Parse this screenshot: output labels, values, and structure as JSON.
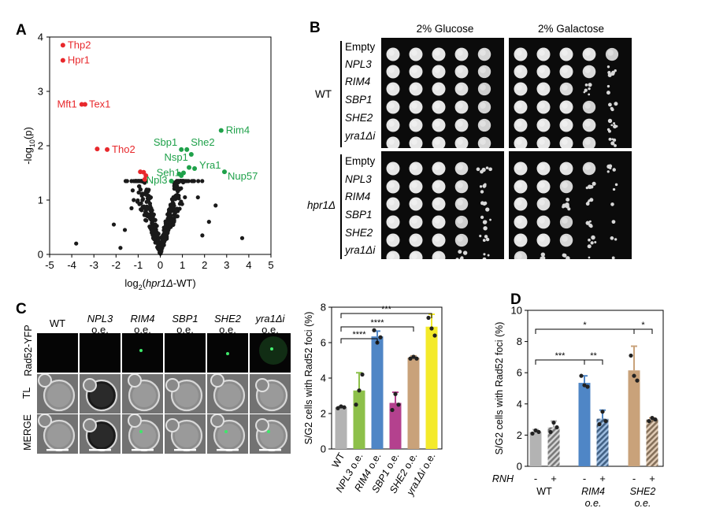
{
  "panels": {
    "a": "A",
    "b": "B",
    "c": "C",
    "d": "D"
  },
  "chart_data": [
    {
      "type": "scatter",
      "xlabel": "log2(hpr1Δ-WT)",
      "ylabel": "-log10(p)",
      "xlim": [
        -5,
        5
      ],
      "ylim": [
        0,
        4
      ],
      "xticks": [
        "-5",
        "-4",
        "-3",
        "-2",
        "-1",
        "0",
        "1",
        "2",
        "3",
        "4",
        "5"
      ],
      "yticks": [
        "0",
        "1",
        "2",
        "3",
        "4"
      ],
      "colors": {
        "down": "#e8282c",
        "up": "#1fa14a",
        "other": "#1a1a1a"
      },
      "labeled_points": [
        {
          "label": "Thp2",
          "x": -4.4,
          "y": 3.85,
          "group": "down"
        },
        {
          "label": "Hpr1",
          "x": -4.4,
          "y": 3.57,
          "group": "down"
        },
        {
          "label": "Mft1",
          "x": -3.55,
          "y": 2.76,
          "group": "down"
        },
        {
          "label": "Tex1",
          "x": -3.4,
          "y": 2.76,
          "group": "down"
        },
        {
          "label": "Tho2",
          "x": -2.4,
          "y": 1.93,
          "group": "down"
        },
        {
          "label": "",
          "x": -2.85,
          "y": 1.94,
          "group": "down"
        },
        {
          "label": "",
          "x": -0.9,
          "y": 1.52,
          "group": "down"
        },
        {
          "label": "",
          "x": -0.75,
          "y": 1.51,
          "group": "down"
        },
        {
          "label": "",
          "x": -0.65,
          "y": 1.45,
          "group": "down"
        },
        {
          "label": "",
          "x": -0.7,
          "y": 1.38,
          "group": "down"
        },
        {
          "label": "Rim4",
          "x": 2.75,
          "y": 2.28,
          "group": "up"
        },
        {
          "label": "Sbp1",
          "x": 0.95,
          "y": 1.93,
          "group": "up"
        },
        {
          "label": "She2",
          "x": 1.2,
          "y": 1.93,
          "group": "up"
        },
        {
          "label": "Nsp1",
          "x": 1.4,
          "y": 1.84,
          "group": "up"
        },
        {
          "label": "Yra1",
          "x": 1.55,
          "y": 1.58,
          "group": "up"
        },
        {
          "label": "Seh1",
          "x": 1.05,
          "y": 1.5,
          "group": "up"
        },
        {
          "label": "Npl3",
          "x": 0.5,
          "y": 1.35,
          "group": "up"
        },
        {
          "label": "Nup57",
          "x": 2.9,
          "y": 1.52,
          "group": "up"
        },
        {
          "label": "",
          "x": 1.3,
          "y": 1.6,
          "group": "up"
        },
        {
          "label": "",
          "x": 0.85,
          "y": 1.48,
          "group": "up"
        },
        {
          "label": "",
          "x": 0.95,
          "y": 1.45,
          "group": "up"
        }
      ]
    },
    {
      "type": "bar",
      "ylabel": "S/G2 cells with Rad52 foci (%)",
      "ylim": [
        0,
        8
      ],
      "yticks": [
        "0",
        "2",
        "4",
        "6",
        "8"
      ],
      "categories": [
        "WT",
        "NPL3 o.e.",
        "RIM4 o.e.",
        "SBP1 o.e.",
        "SHE2 o.e.",
        "yra1Δi o.e."
      ],
      "values": [
        2.35,
        3.3,
        6.35,
        2.6,
        5.15,
        6.9
      ],
      "errors": [
        0.05,
        1.0,
        0.3,
        0.6,
        0.1,
        0.7
      ],
      "colors": [
        "#b3b3b3",
        "#8dc04a",
        "#4f86c6",
        "#b4418e",
        "#c9a27a",
        "#f4ea2a"
      ],
      "replicates": [
        [
          2.3,
          2.4,
          2.35
        ],
        [
          2.5,
          3.3,
          4.2
        ],
        [
          6.7,
          6.0,
          6.3
        ],
        [
          2.2,
          3.1,
          2.5
        ],
        [
          5.1,
          5.2,
          5.1
        ],
        [
          7.4,
          6.8,
          6.4
        ]
      ],
      "significance": [
        "****",
        "****",
        "***"
      ]
    },
    {
      "type": "bar",
      "ylabel": "S/G2 cells with Rad52 foci (%)",
      "ylim": [
        0,
        10
      ],
      "yticks": [
        "0",
        "2",
        "4",
        "6",
        "8",
        "10"
      ],
      "categories": [
        "WT",
        "WT",
        "RIM4 o.e.",
        "RIM4 o.e.",
        "SHE2 o.e.",
        "SHE2 o.e."
      ],
      "rnh": [
        "-",
        "+",
        "-",
        "+",
        "-",
        "+"
      ],
      "rnh_label": "RNH",
      "group_labels": [
        "WT",
        "RIM4",
        "SHE2"
      ],
      "group_sublabels": [
        "",
        "o.e.",
        "o.e."
      ],
      "values": [
        2.2,
        2.5,
        5.35,
        3.05,
        6.15,
        3.0
      ],
      "errors": [
        0.15,
        0.4,
        0.45,
        0.55,
        1.55,
        0.1
      ],
      "colors": [
        "#b3b3b3",
        "#b3b3b3",
        "#4f86c6",
        "#4f86c6",
        "#c9a27a",
        "#c9a27a"
      ],
      "hatched": [
        false,
        true,
        false,
        true,
        false,
        true
      ],
      "replicates": [
        [
          2.1,
          2.3,
          2.2
        ],
        [
          2.2,
          2.8,
          2.5
        ],
        [
          5.8,
          5.2,
          5.1
        ],
        [
          2.7,
          3.5,
          2.9
        ],
        [
          7.1,
          5.8,
          5.5
        ],
        [
          2.9,
          3.1,
          3.0
        ]
      ],
      "significance": [
        "*",
        "***",
        "**",
        "*"
      ]
    }
  ],
  "spot_assay": {
    "media": [
      "2% Glucose",
      "2% Galactose"
    ],
    "strain_groups": [
      "WT",
      "hpr1Δ"
    ],
    "constructs": [
      "Empty",
      "NPL3",
      "RIM4",
      "SBP1",
      "SHE2",
      "yra1Δi"
    ]
  },
  "microscopy": {
    "columns": [
      {
        "line1": "WT",
        "line2": ""
      },
      {
        "line1": "NPL3",
        "line2": "o.e."
      },
      {
        "line1": "RIM4",
        "line2": "o.e."
      },
      {
        "line1": "SBP1",
        "line2": "o.e."
      },
      {
        "line1": "SHE2",
        "line2": "o.e."
      },
      {
        "line1": "yra1Δi",
        "line2": "o.e."
      }
    ],
    "rows": [
      "Rad52-YFP",
      "TL",
      "MERGE"
    ]
  }
}
